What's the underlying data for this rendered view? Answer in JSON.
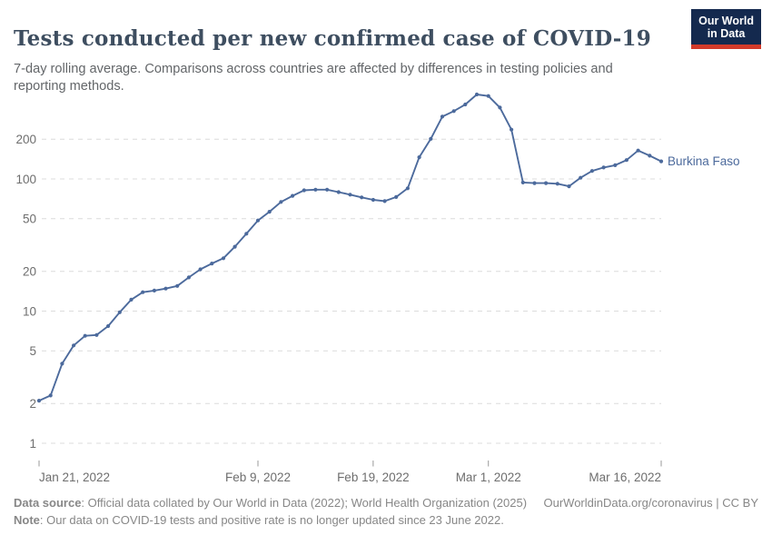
{
  "header": {
    "title": "Tests conducted per new confirmed case of COVID-19",
    "subtitle": "7-day rolling average. Comparisons across countries are affected by differences in testing policies and reporting methods.",
    "logo": {
      "line1": "Our World",
      "line2": "in Data",
      "bg_color": "#14294e",
      "accent_color": "#d33a2a"
    }
  },
  "chart_data": {
    "type": "line",
    "title": "Tests conducted per new confirmed case of COVID-19",
    "y_scale": "log",
    "ylim": [
      1,
      500
    ],
    "grid": true,
    "legend_position": "end-of-line-label",
    "line_color": "#4c6a9c",
    "grid_color": "#dcdcdc",
    "axis_text_color": "#6e6e6e",
    "y_ticks": [
      1,
      2,
      5,
      10,
      20,
      50,
      100,
      200
    ],
    "x_ticks": [
      {
        "label": "Jan 21, 2022",
        "day": 0,
        "align": "start"
      },
      {
        "label": "Feb 9, 2022",
        "day": 19,
        "align": "middle"
      },
      {
        "label": "Feb 19, 2022",
        "day": 29,
        "align": "middle"
      },
      {
        "label": "Mar 1, 2022",
        "day": 39,
        "align": "middle"
      },
      {
        "label": "Mar 16, 2022",
        "day": 54,
        "align": "end"
      }
    ],
    "series": [
      {
        "name": "Burkina Faso",
        "start_date": "2022-01-21",
        "end_date": "2022-03-16",
        "frequency": "daily",
        "values": [
          2.1,
          2.3,
          4.0,
          5.5,
          6.5,
          6.6,
          7.7,
          9.8,
          12.2,
          13.9,
          14.3,
          14.8,
          15.5,
          18,
          20.7,
          22.9,
          25.1,
          30.7,
          38.5,
          48.5,
          56.5,
          67,
          74.5,
          82,
          83,
          83,
          79.5,
          76,
          72.5,
          69.5,
          68,
          73,
          85,
          146,
          201,
          296,
          326,
          366,
          436,
          424,
          347,
          236,
          94,
          93,
          93,
          92,
          88,
          102,
          115,
          122,
          127,
          139,
          164,
          150,
          136
        ]
      }
    ]
  },
  "footer": {
    "source_label": "Data source",
    "source_text": ": Official data collated by Our World in Data (2022); World Health Organization (2025)",
    "link_text": "OurWorldinData.org/coronavirus",
    "divider": " | ",
    "license_text": "CC BY",
    "note_label": "Note",
    "note_text": ": Our data on COVID-19 tests and positive rate is no longer updated since 23 June 2022."
  }
}
